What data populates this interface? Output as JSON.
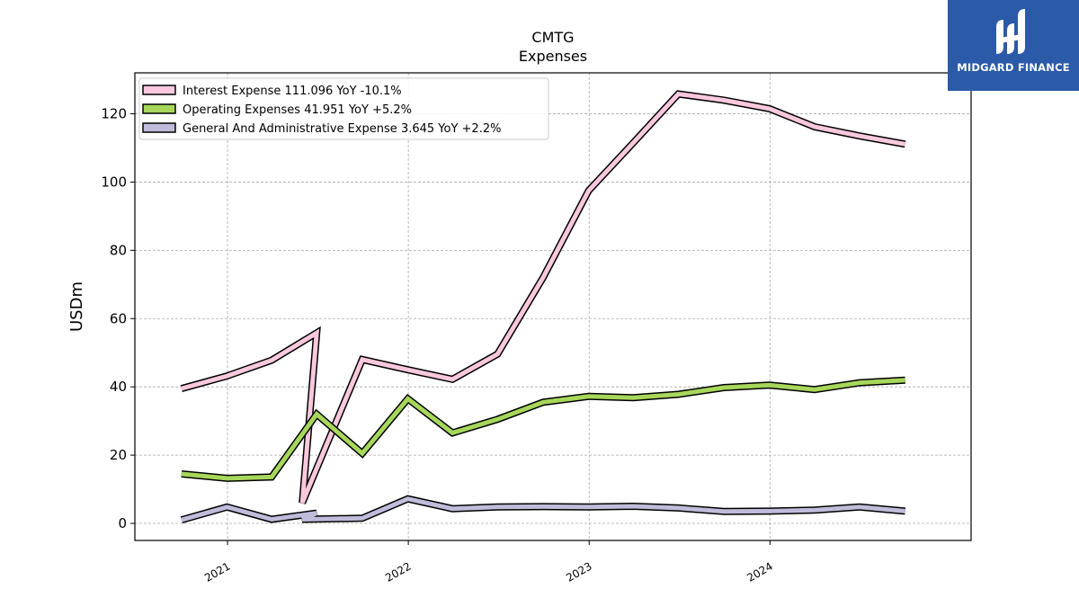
{
  "brand": {
    "name": "MIDGARD FINANCE",
    "background": "#2b5aa8"
  },
  "chart_data": {
    "type": "line",
    "title": "CMTG",
    "subtitle": "Expenses",
    "xlabel": "",
    "ylabel": "USDm",
    "ylim": [
      -5,
      132
    ],
    "xlim": [
      "2020-06-28",
      "2025-02-10"
    ],
    "x_ticks": [
      "2021",
      "2022",
      "2023",
      "2024"
    ],
    "y_ticks": [
      0,
      20,
      40,
      60,
      80,
      100,
      120
    ],
    "grid": true,
    "legend_position": "top-left",
    "series": [
      {
        "name": "Interest Expense",
        "legend_label": "Interest Expense  111.096 YoY -10.1%",
        "color": "#f9c8dd",
        "points": [
          [
            "2020-09-30",
            39.5
          ],
          [
            "2020-12-31",
            43.2
          ],
          [
            "2021-03-31",
            47.8
          ],
          [
            "2021-06-30",
            55.8
          ],
          [
            "2021-06-01",
            6.0
          ],
          [
            "2021-09-30",
            48.0
          ],
          [
            "2021-12-31",
            45.0
          ],
          [
            "2022-03-31",
            42.2
          ],
          [
            "2022-06-30",
            49.6
          ],
          [
            "2022-09-30",
            72.0
          ],
          [
            "2022-12-31",
            97.5
          ],
          [
            "2023-03-31",
            111.5
          ],
          [
            "2023-06-30",
            125.8
          ],
          [
            "2023-09-30",
            124.0
          ],
          [
            "2023-12-31",
            121.5
          ],
          [
            "2024-03-31",
            116.2
          ],
          [
            "2024-06-30",
            113.5
          ],
          [
            "2024-09-30",
            111.1
          ]
        ]
      },
      {
        "name": "Operating Expenses",
        "legend_label": "Operating Expenses  41.951 YoY +5.2%",
        "color": "#a6d75b",
        "points": [
          [
            "2020-09-30",
            14.5
          ],
          [
            "2020-12-31",
            13.2
          ],
          [
            "2021-03-31",
            13.6
          ],
          [
            "2021-06-30",
            32.0
          ],
          [
            "2021-09-30",
            20.5
          ],
          [
            "2021-12-31",
            36.5
          ],
          [
            "2022-03-31",
            26.5
          ],
          [
            "2022-06-30",
            30.5
          ],
          [
            "2022-09-30",
            35.5
          ],
          [
            "2022-12-31",
            37.2
          ],
          [
            "2023-03-31",
            36.8
          ],
          [
            "2023-06-30",
            37.8
          ],
          [
            "2023-09-30",
            39.8
          ],
          [
            "2023-12-31",
            40.5
          ],
          [
            "2024-03-31",
            39.2
          ],
          [
            "2024-06-30",
            41.2
          ],
          [
            "2024-09-30",
            41.95
          ]
        ]
      },
      {
        "name": "General And Administrative Expense",
        "legend_label": "General And Administrative Expense  3.645 YoY +2.2%",
        "color": "#bfbcdb",
        "points": [
          [
            "2020-09-30",
            1.0
          ],
          [
            "2020-12-31",
            4.8
          ],
          [
            "2021-03-31",
            1.2
          ],
          [
            "2021-06-30",
            3.0
          ],
          [
            "2021-06-01",
            1.2
          ],
          [
            "2021-09-30",
            1.5
          ],
          [
            "2021-12-31",
            7.2
          ],
          [
            "2022-03-31",
            4.3
          ],
          [
            "2022-06-30",
            4.8
          ],
          [
            "2022-09-30",
            4.9
          ],
          [
            "2022-12-31",
            4.8
          ],
          [
            "2023-03-31",
            5.0
          ],
          [
            "2023-06-30",
            4.5
          ],
          [
            "2023-09-30",
            3.5
          ],
          [
            "2023-12-31",
            3.6
          ],
          [
            "2024-03-31",
            3.9
          ],
          [
            "2024-06-30",
            4.8
          ],
          [
            "2024-09-30",
            3.6
          ]
        ]
      }
    ]
  }
}
